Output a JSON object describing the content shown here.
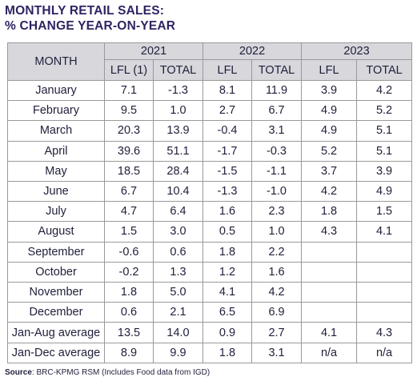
{
  "title": {
    "line1": "MONTHLY RETAIL SALES:",
    "line2": "% CHANGE YEAR-ON-YEAR"
  },
  "table": {
    "month_header": "MONTH",
    "years": [
      "2021",
      "2022",
      "2023"
    ],
    "subheaders": [
      "LFL (1)",
      "TOTAL",
      "LFL",
      "TOTAL",
      "LFL",
      "TOTAL"
    ],
    "rows": [
      {
        "month": "January",
        "values": [
          "7.1",
          "-1.3",
          "8.1",
          "11.9",
          "3.9",
          "4.2"
        ]
      },
      {
        "month": "February",
        "values": [
          "9.5",
          "1.0",
          "2.7",
          "6.7",
          "4.9",
          "5.2"
        ]
      },
      {
        "month": "March",
        "values": [
          "20.3",
          "13.9",
          "-0.4",
          "3.1",
          "4.9",
          "5.1"
        ]
      },
      {
        "month": "April",
        "values": [
          "39.6",
          "51.1",
          "-1.7",
          "-0.3",
          "5.2",
          "5.1"
        ]
      },
      {
        "month": "May",
        "values": [
          "18.5",
          "28.4",
          "-1.5",
          "-1.1",
          "3.7",
          "3.9"
        ]
      },
      {
        "month": "June",
        "values": [
          "6.7",
          "10.4",
          "-1.3",
          "-1.0",
          "4.2",
          "4.9"
        ]
      },
      {
        "month": "July",
        "values": [
          "4.7",
          "6.4",
          "1.6",
          "2.3",
          "1.8",
          "1.5"
        ]
      },
      {
        "month": "August",
        "values": [
          "1.5",
          "3.0",
          "0.5",
          "1.0",
          "4.3",
          "4.1"
        ]
      },
      {
        "month": "September",
        "values": [
          "-0.6",
          "0.6",
          "1.8",
          "2.2",
          "",
          ""
        ]
      },
      {
        "month": "October",
        "values": [
          "-0.2",
          "1.3",
          "1.2",
          "1.6",
          "",
          ""
        ]
      },
      {
        "month": "November",
        "values": [
          "1.8",
          "5.0",
          "4.1",
          "4.2",
          "",
          ""
        ]
      },
      {
        "month": "December",
        "values": [
          "0.6",
          "2.1",
          "6.5",
          "6.9",
          "",
          ""
        ]
      },
      {
        "month": "Jan-Aug average",
        "values": [
          "13.5",
          "14.0",
          "0.9",
          "2.7",
          "4.1",
          "4.3"
        ]
      },
      {
        "month": "Jan-Dec average",
        "values": [
          "8.9",
          "9.9",
          "1.8",
          "3.1",
          "n/a",
          "n/a"
        ]
      }
    ]
  },
  "source": {
    "label": "Source",
    "text": ": BRC-KPMG RSM (Includes Food data from IGD)"
  }
}
